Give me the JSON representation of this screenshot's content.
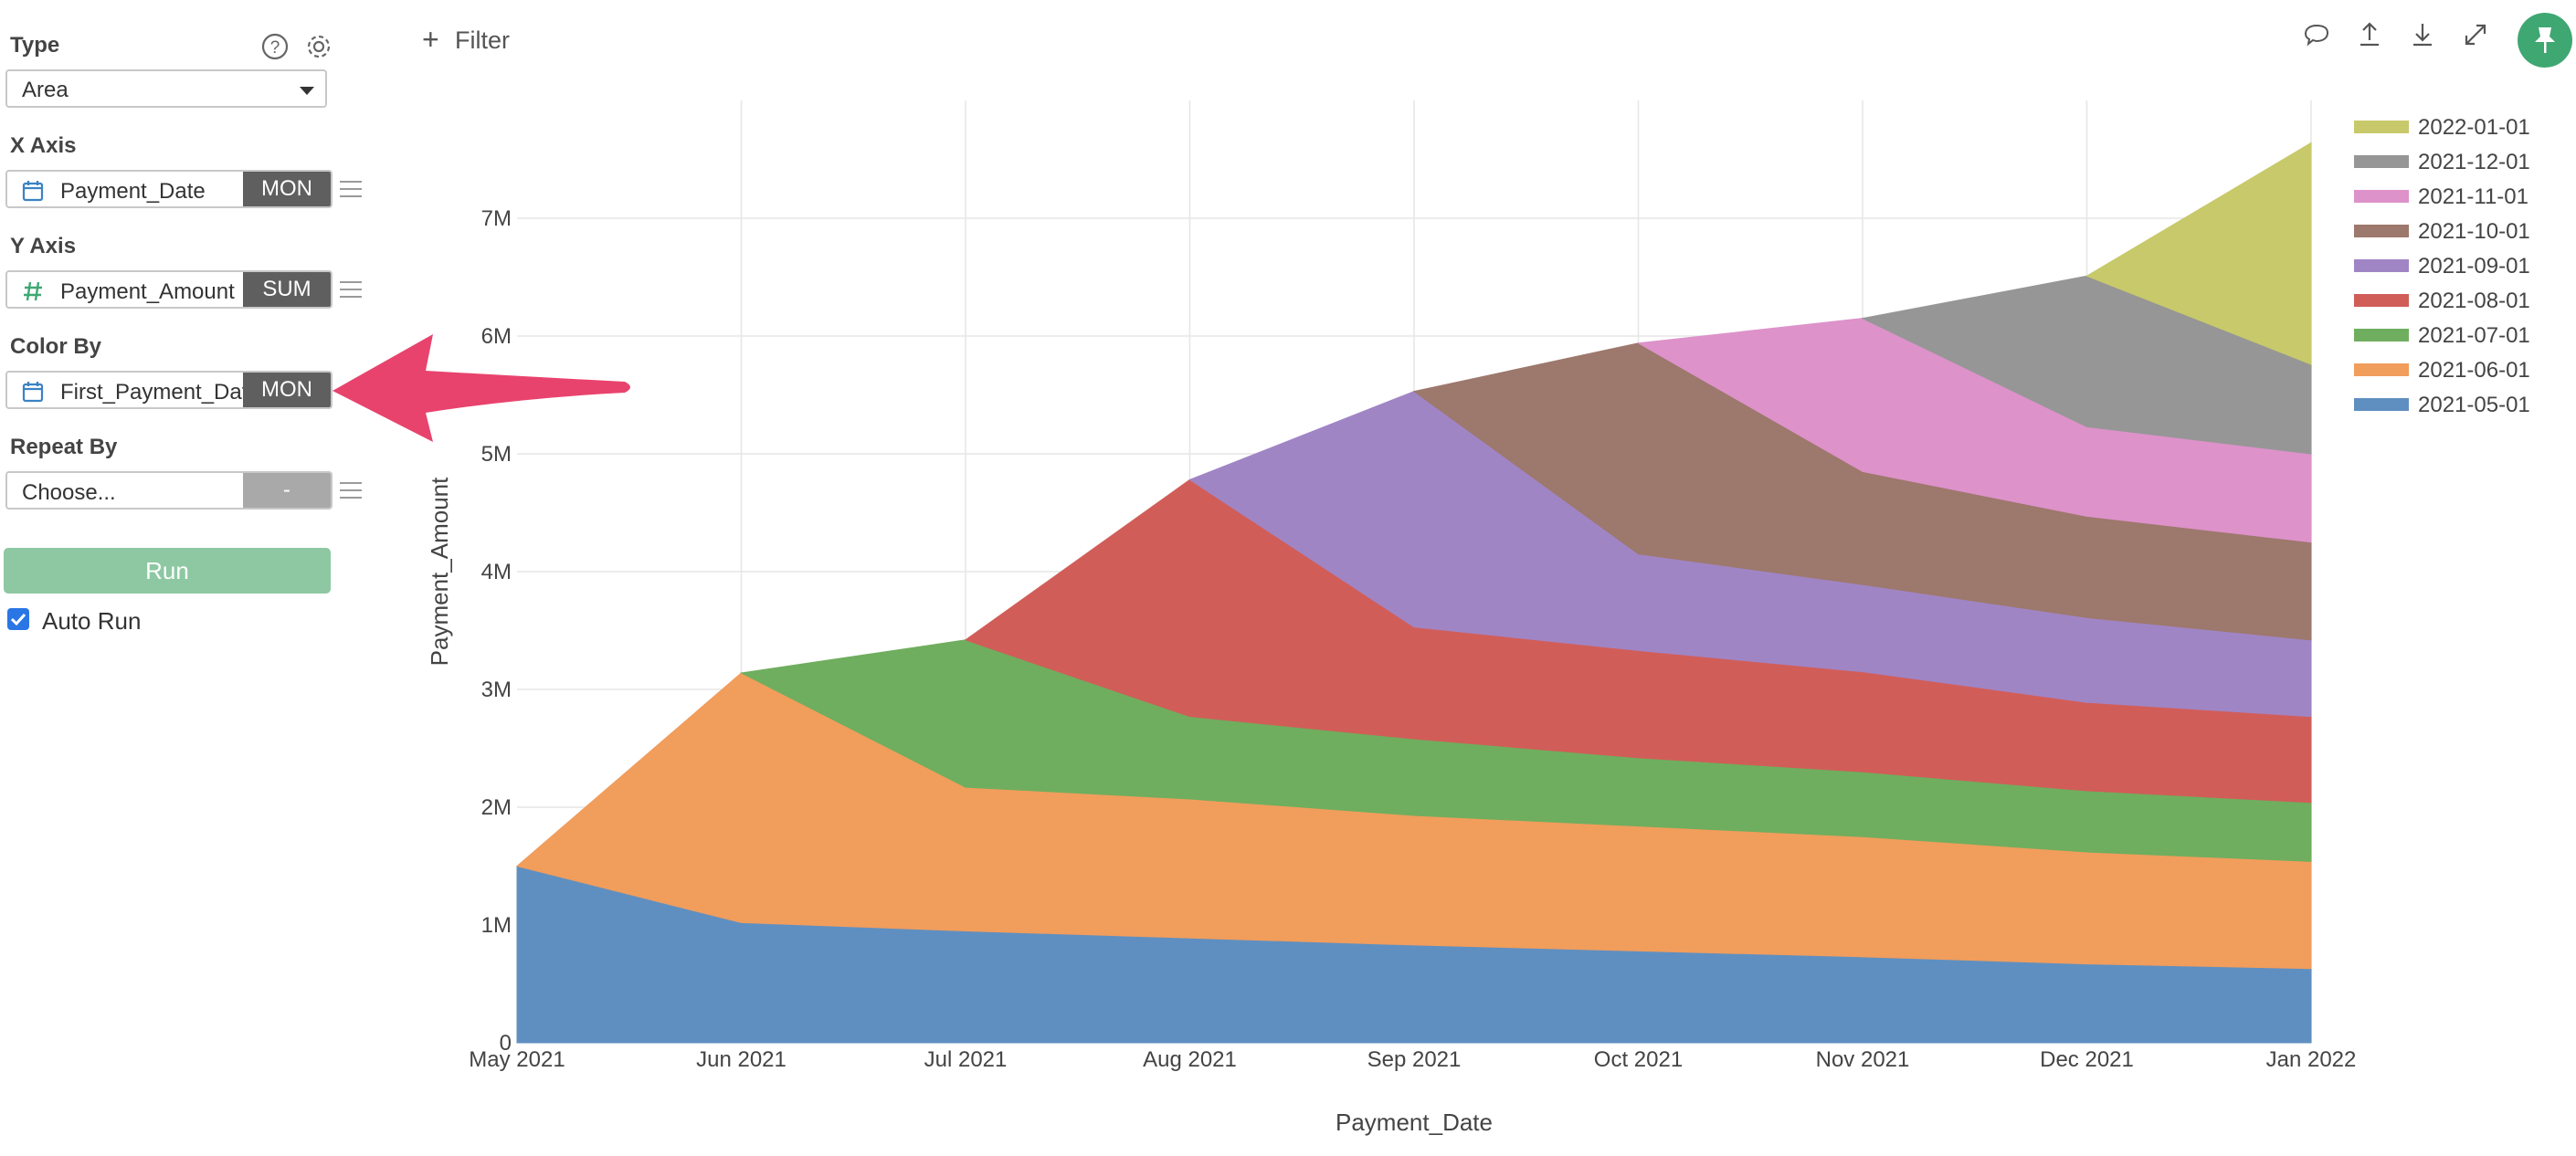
{
  "panel": {
    "type": {
      "label": "Type",
      "value": "Area"
    },
    "x_axis": {
      "label": "X Axis",
      "field": "Payment_Date",
      "agg": "MON",
      "icon": "calendar-icon"
    },
    "y_axis": {
      "label": "Y Axis",
      "field": "Payment_Amount",
      "agg": "SUM",
      "icon": "hash-icon"
    },
    "color_by": {
      "label": "Color By",
      "field": "First_Payment_Date",
      "agg": "MON",
      "icon": "calendar-icon"
    },
    "repeat_by": {
      "label": "Repeat By",
      "placeholder": "Choose...",
      "agg": "-"
    },
    "run_label": "Run",
    "auto_run_label": "Auto Run",
    "auto_run_checked": true
  },
  "toolbar": {
    "filter_label": "Filter",
    "icons": [
      "comment-icon",
      "upload-icon",
      "download-icon",
      "expand-icon",
      "pin-icon"
    ]
  },
  "colors": {
    "accent_green": "#3fa772",
    "run_button": "#8dc8a3",
    "annotation_arrow": "#e8436d",
    "aggregation_badge": "#5f5f5f"
  },
  "chart_data": {
    "type": "area",
    "stacked": true,
    "xlabel": "Payment_Date",
    "ylabel": "Payment_Amount",
    "ylim": [
      0,
      8000000
    ],
    "y_ticks": [
      0,
      1000000,
      2000000,
      3000000,
      4000000,
      5000000,
      6000000,
      7000000
    ],
    "y_tick_labels": [
      "0",
      "1M",
      "2M",
      "3M",
      "4M",
      "5M",
      "6M",
      "7M"
    ],
    "categories": [
      "May 2021",
      "Jun 2021",
      "Jul 2021",
      "Aug 2021",
      "Sep 2021",
      "Oct 2021",
      "Nov 2021",
      "Dec 2021",
      "Jan 2022"
    ],
    "grid": true,
    "legend_position": "top-right",
    "series": [
      {
        "name": "2021-05-01",
        "color": "#5f8fc0",
        "values": [
          1500000,
          1020000,
          950000,
          890000,
          830000,
          780000,
          730000,
          670000,
          630000
        ]
      },
      {
        "name": "2021-06-01",
        "color": "#f19d5c",
        "values": [
          null,
          2120000,
          1220000,
          1180000,
          1100000,
          1060000,
          1020000,
          950000,
          910000
        ]
      },
      {
        "name": "2021-07-01",
        "color": "#6fae5e",
        "values": [
          null,
          null,
          1250000,
          700000,
          650000,
          580000,
          550000,
          520000,
          500000
        ]
      },
      {
        "name": "2021-08-01",
        "color": "#d15d59",
        "values": [
          null,
          null,
          null,
          2010000,
          950000,
          910000,
          850000,
          750000,
          730000
        ]
      },
      {
        "name": "2021-09-01",
        "color": "#a085c5",
        "values": [
          null,
          null,
          null,
          null,
          2000000,
          820000,
          740000,
          720000,
          650000
        ]
      },
      {
        "name": "2021-10-01",
        "color": "#9d786c",
        "values": [
          null,
          null,
          null,
          null,
          null,
          1790000,
          960000,
          860000,
          830000
        ]
      },
      {
        "name": "2021-11-01",
        "color": "#dd92ca",
        "values": [
          null,
          null,
          null,
          null,
          null,
          null,
          1300000,
          760000,
          750000
        ]
      },
      {
        "name": "2021-12-01",
        "color": "#969696",
        "values": [
          null,
          null,
          null,
          null,
          null,
          null,
          null,
          1280000,
          760000
        ]
      },
      {
        "name": "2022-01-01",
        "color": "#c8c96a",
        "values": [
          null,
          null,
          null,
          null,
          null,
          null,
          null,
          null,
          1880000
        ]
      }
    ]
  }
}
